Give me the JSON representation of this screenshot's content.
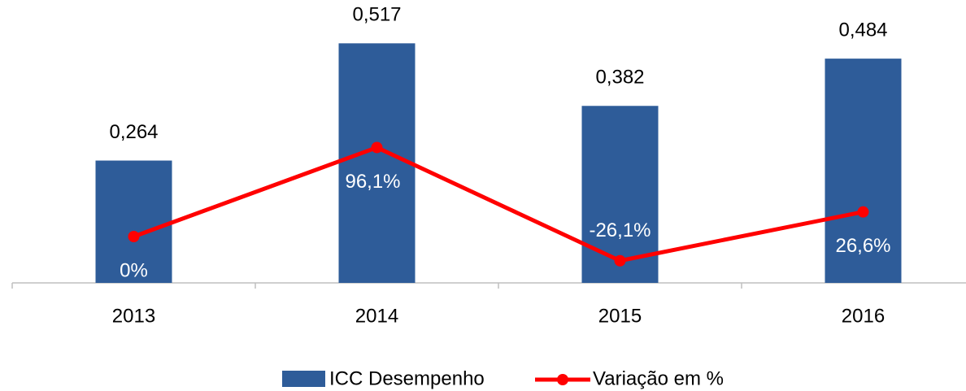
{
  "chart_data": {
    "type": "bar",
    "categories": [
      "2013",
      "2014",
      "2015",
      "2016"
    ],
    "series": [
      {
        "name": "ICC Desempenho",
        "type": "bar",
        "color": "#2e5c99",
        "values": [
          0.264,
          0.517,
          0.382,
          0.484
        ],
        "value_labels": [
          "0,264",
          "0,517",
          "0,382",
          "0,484"
        ]
      },
      {
        "name": "Variação em %",
        "type": "line",
        "axis": "y2",
        "color": "#ff0000",
        "values": [
          0,
          96.1,
          -26.1,
          26.6
        ],
        "value_labels": [
          "0%",
          "96,1%",
          "-26,1%",
          "26,6%"
        ]
      }
    ],
    "ylim": [
      0,
      0.6
    ],
    "y2lim": [
      -50,
      250
    ],
    "grid": false,
    "legend": "bottom"
  }
}
